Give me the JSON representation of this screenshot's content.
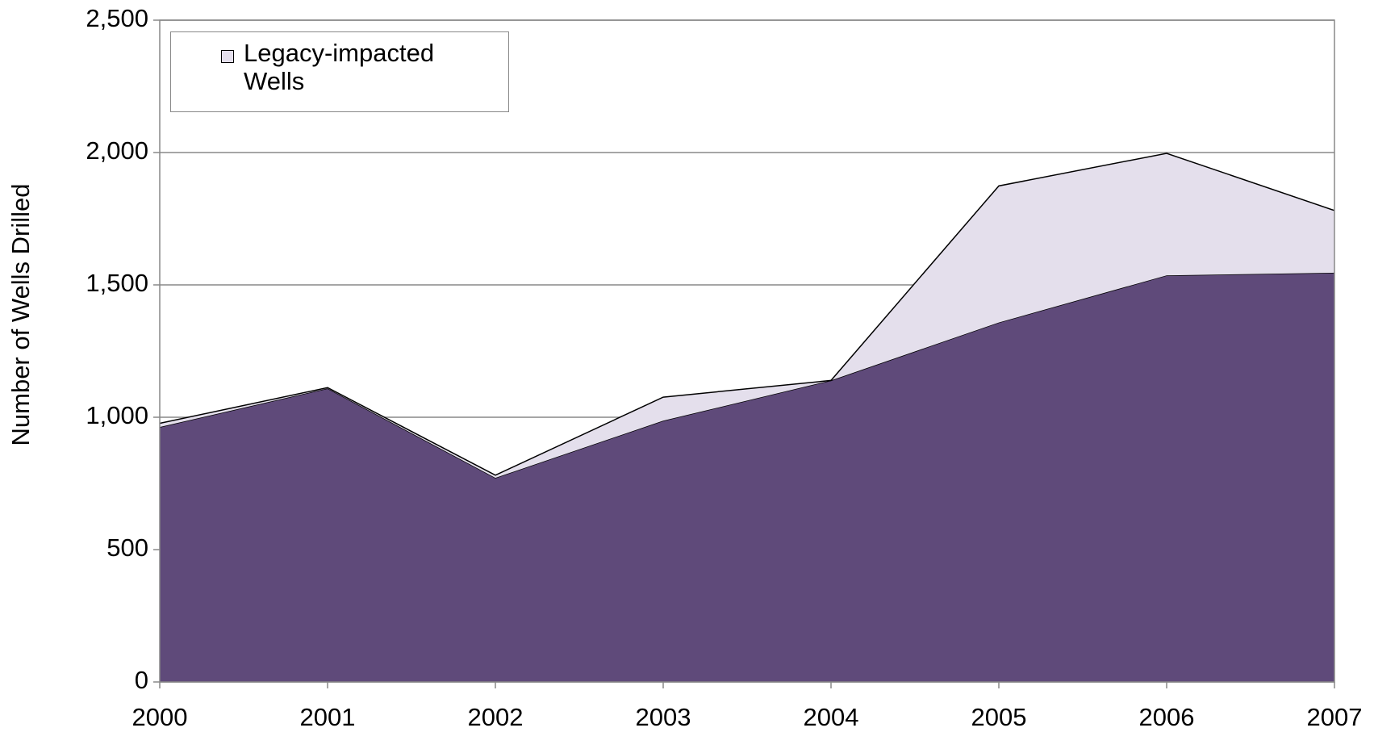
{
  "chart_data": {
    "type": "stacked-area",
    "y_label": "Number of Wells Drilled",
    "x": [
      2000,
      2001,
      2002,
      2003,
      2004,
      2005,
      2006,
      2007
    ],
    "xlim": [
      2000,
      2007
    ],
    "xticks": [
      2000,
      2001,
      2002,
      2003,
      2004,
      2005,
      2006,
      2007
    ],
    "ylim": [
      0,
      2500
    ],
    "yticks": [
      0,
      500,
      {
        "value": 1000,
        "label": "1,000"
      },
      {
        "value": 1500,
        "label": "1,500"
      },
      {
        "value": 2000,
        "label": "2,000"
      },
      {
        "value": 2500,
        "label": "2,500"
      }
    ],
    "grid": true,
    "legend": "upper left",
    "series": [
      {
        "color": "#5f4a7a",
        "values": [
          963,
          1109,
          771,
          987,
          1139,
          1358,
          1536,
          1546
        ]
      },
      {
        "name": "Legacy-impacted Wells",
        "color": "#e4dfec",
        "values": [
          14,
          3,
          10,
          89,
          0,
          516,
          461,
          235
        ]
      }
    ]
  }
}
